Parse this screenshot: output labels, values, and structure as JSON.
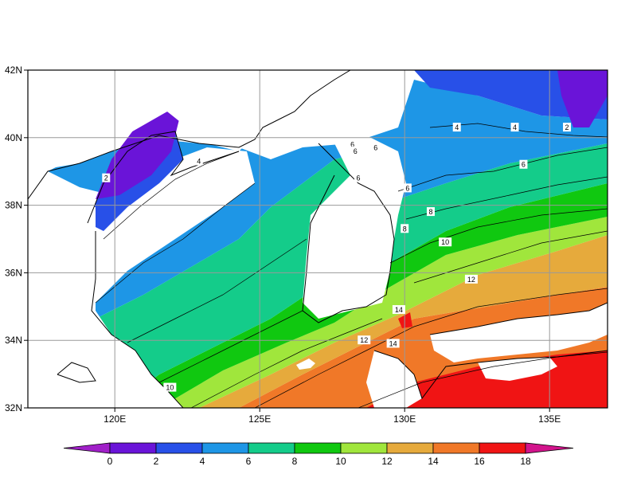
{
  "map": {
    "x_ticks": [
      "120E",
      "125E",
      "130E",
      "135E"
    ],
    "y_ticks": [
      "42N",
      "40N",
      "38N",
      "36N",
      "34N",
      "32N"
    ],
    "x_range": [
      117,
      137
    ],
    "y_range": [
      32,
      42
    ],
    "grid": true,
    "contour_labels": [
      {
        "text": "2",
        "lon": 119.7,
        "lat": 38.8
      },
      {
        "text": "4",
        "lon": 122.9,
        "lat": 39.3
      },
      {
        "text": "6",
        "lon": 128.2,
        "lat": 39.8
      },
      {
        "text": "6",
        "lon": 128.3,
        "lat": 39.6
      },
      {
        "text": "6",
        "lon": 129.0,
        "lat": 39.7
      },
      {
        "text": "6",
        "lon": 128.4,
        "lat": 38.8
      },
      {
        "text": "6",
        "lon": 130.1,
        "lat": 38.5
      },
      {
        "text": "4",
        "lon": 131.8,
        "lat": 40.3
      },
      {
        "text": "4",
        "lon": 133.8,
        "lat": 40.3
      },
      {
        "text": "2",
        "lon": 135.6,
        "lat": 40.3
      },
      {
        "text": "6",
        "lon": 134.1,
        "lat": 39.2
      },
      {
        "text": "8",
        "lon": 130.9,
        "lat": 37.8
      },
      {
        "text": "8",
        "lon": 130.0,
        "lat": 37.3
      },
      {
        "text": "10",
        "lon": 131.4,
        "lat": 36.9
      },
      {
        "text": "12",
        "lon": 132.3,
        "lat": 35.8
      },
      {
        "text": "14",
        "lon": 129.8,
        "lat": 34.9
      },
      {
        "text": "12",
        "lon": 128.6,
        "lat": 34.0
      },
      {
        "text": "14",
        "lon": 129.6,
        "lat": 33.9
      },
      {
        "text": "10",
        "lon": 121.9,
        "lat": 32.6
      }
    ]
  },
  "colorbar": {
    "labels": [
      "0",
      "2",
      "4",
      "6",
      "8",
      "10",
      "12",
      "14",
      "16",
      "18"
    ],
    "colors": [
      "#a020c8",
      "#6a14d8",
      "#2850e8",
      "#1e96e6",
      "#14cc8a",
      "#10c810",
      "#a0e63c",
      "#e6aa3c",
      "#f07828",
      "#f01414",
      "#d2148c"
    ]
  }
}
